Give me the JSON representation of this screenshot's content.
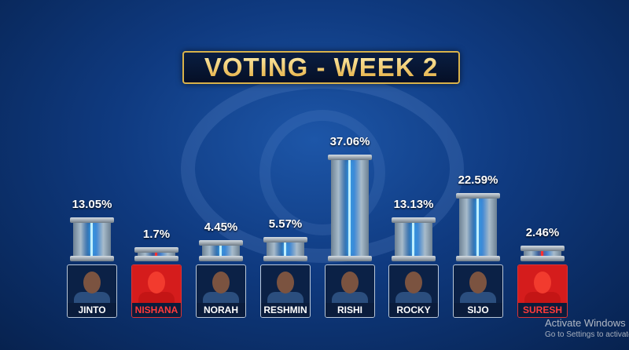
{
  "title": "VOTING - WEEK 2",
  "chart_data": {
    "type": "bar",
    "title": "VOTING - WEEK 2",
    "categories": [
      "JINTO",
      "NISHANA",
      "NORAH",
      "RESHMIN",
      "RISHI",
      "ROCKY",
      "SIJO",
      "SURESH"
    ],
    "values": [
      13.05,
      1.7,
      4.45,
      5.57,
      37.06,
      13.13,
      22.59,
      2.46
    ],
    "labels": [
      "13.05%",
      "1.7%",
      "4.45%",
      "5.57%",
      "37.06%",
      "13.13%",
      "22.59%",
      "2.46%"
    ],
    "highlighted_red": [
      "NISHANA",
      "SURESH"
    ],
    "unit": "%"
  },
  "colors": {
    "accent_gold": "#d9b24a",
    "background": "#0f3a80",
    "bolt": "#3fb7ff",
    "eliminated_red": "#d51c1c"
  },
  "watermark": {
    "line1": "Activate Windows",
    "line2": "Go to Settings to activate Windows."
  }
}
